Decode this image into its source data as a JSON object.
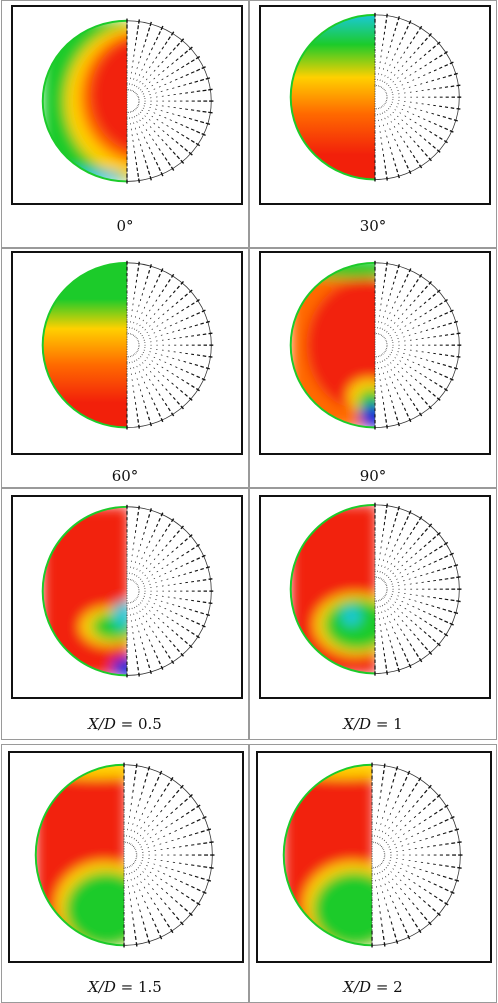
{
  "colors": {
    "red": "#f2200a",
    "orange": "#ff6a00",
    "yellow": "#ffd000",
    "green": "#1ccb2a",
    "cyan": "#1ac8d8",
    "blue": "#0a2bd8",
    "vector": "#111111"
  },
  "panels": [
    {
      "caption": "0°",
      "pattern": "p0"
    },
    {
      "caption": "30°",
      "pattern": "p30"
    },
    {
      "caption": "60°",
      "pattern": "p60"
    },
    {
      "caption": "90°",
      "pattern": "p90"
    },
    {
      "caption_var": "X/D",
      "caption_val": " = 0.5",
      "pattern": "x05"
    },
    {
      "caption_var": "X/D",
      "caption_val": " = 1",
      "pattern": "x1"
    },
    {
      "caption_var": "X/D",
      "caption_val": " = 1.5",
      "pattern": "x15"
    },
    {
      "caption_var": "X/D",
      "caption_val": " = 2",
      "pattern": "x2"
    }
  ]
}
